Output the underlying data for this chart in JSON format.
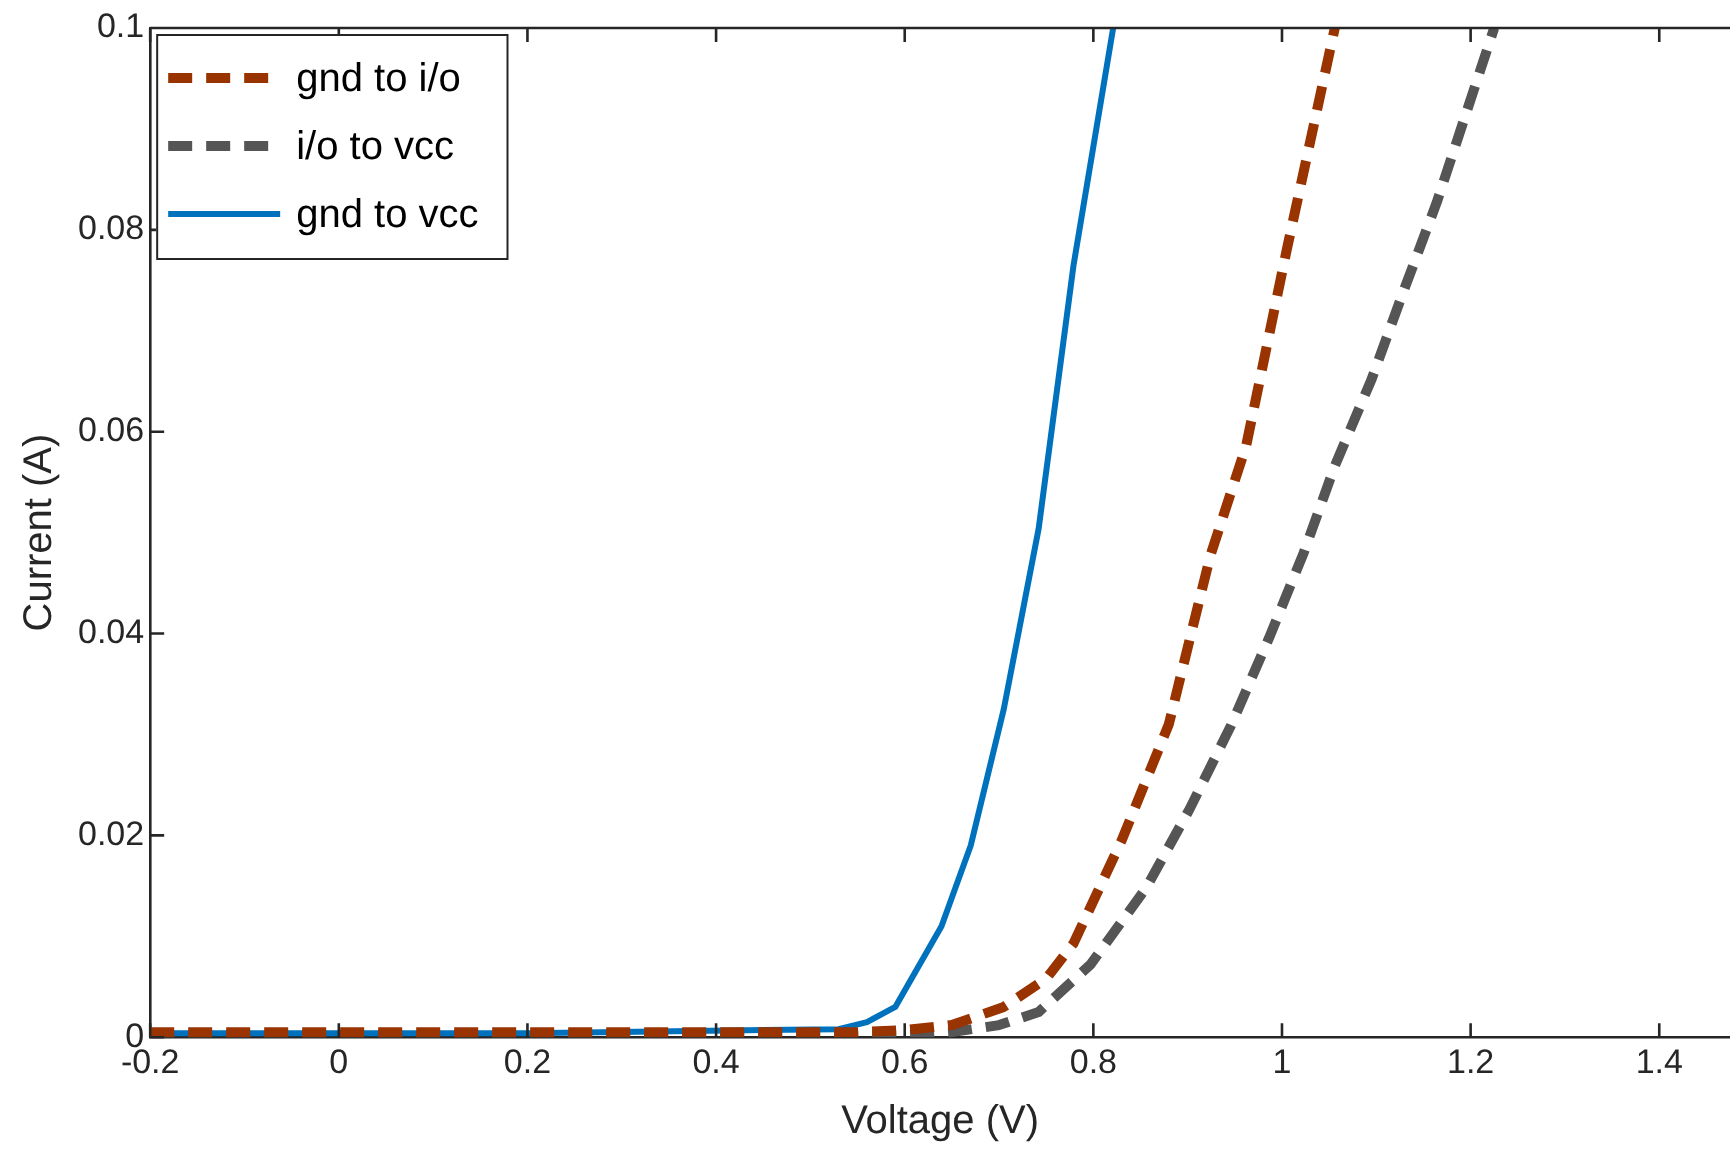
{
  "chart_data": {
    "type": "line",
    "xlabel": "Voltage (V)",
    "ylabel": "Current (A)",
    "xlim": [
      -0.2,
      1.475
    ],
    "xticks": [
      -0.2,
      0,
      0.2,
      0.4,
      0.6,
      0.8,
      1,
      1.2,
      1.4
    ],
    "ylim": [
      0,
      0.1
    ],
    "yticks": [
      0,
      0.02,
      0.04,
      0.06,
      0.08,
      0.1
    ],
    "grid": false,
    "legend": "top left",
    "marker": "none",
    "series": [
      {
        "name": "gnd to i/o",
        "color": "#993300",
        "line_style": "dashed",
        "x": [
          -0.2,
          0.2,
          0.55,
          0.6,
          0.65,
          0.705,
          0.75,
          0.779,
          0.83,
          0.88,
          0.924,
          0.962,
          1.005,
          1.056
        ],
        "values": [
          0.0005,
          0.0005,
          0.0005,
          0.0007,
          0.0012,
          0.003,
          0.0058,
          0.0093,
          0.0195,
          0.031,
          0.0477,
          0.0586,
          0.078,
          0.1
        ]
      },
      {
        "name": "i/o to vcc",
        "color": "#555555",
        "line_style": "dashed",
        "x": [
          -0.2,
          0.2,
          0.6,
          0.65,
          0.7,
          0.742,
          0.797,
          0.856,
          0.902,
          0.946,
          0.986,
          1.023,
          1.056,
          1.095,
          1.128,
          1.164,
          1.225
        ],
        "values": [
          0.0002,
          0.0002,
          0.0002,
          0.0005,
          0.0012,
          0.0025,
          0.0072,
          0.0148,
          0.0226,
          0.0309,
          0.0395,
          0.048,
          0.0566,
          0.0652,
          0.0737,
          0.0827,
          0.1
        ]
      },
      {
        "name": "gnd to vcc",
        "color": "#0072bd",
        "line_style": "solid",
        "x": [
          -0.2,
          0.2,
          0.53,
          0.56,
          0.59,
          0.639,
          0.67,
          0.705,
          0.742,
          0.779,
          0.821
        ],
        "values": [
          0.0004,
          0.0004,
          0.0008,
          0.0015,
          0.003,
          0.011,
          0.019,
          0.0325,
          0.0504,
          0.0765,
          0.1
        ]
      }
    ]
  }
}
